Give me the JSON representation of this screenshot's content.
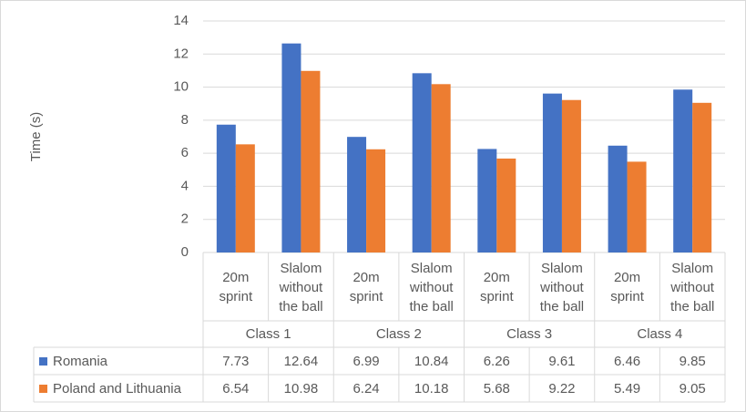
{
  "chart_data": {
    "type": "bar",
    "y_axis_label": "Time (s)",
    "categories": [
      "20m sprint",
      "Slalom without the ball",
      "20m sprint",
      "Slalom without the ball",
      "20m sprint",
      "Slalom without the ball",
      "20m sprint",
      "Slalom without the ball"
    ],
    "groups": [
      "Class 1",
      "Class 2",
      "Class 3",
      "Class 4"
    ],
    "series": [
      {
        "name": "Romania",
        "color": "#4472c4",
        "values": [
          7.73,
          12.64,
          6.99,
          10.84,
          6.26,
          9.61,
          6.46,
          9.85
        ]
      },
      {
        "name": "Poland and Lithuania",
        "color": "#ed7d31",
        "values": [
          6.54,
          10.98,
          6.24,
          10.18,
          5.68,
          9.22,
          5.49,
          9.05
        ]
      }
    ],
    "ylim": [
      0,
      14
    ],
    "yticks": [
      0,
      2,
      4,
      6,
      8,
      10,
      12,
      14
    ],
    "grid": true,
    "data_table": true
  }
}
